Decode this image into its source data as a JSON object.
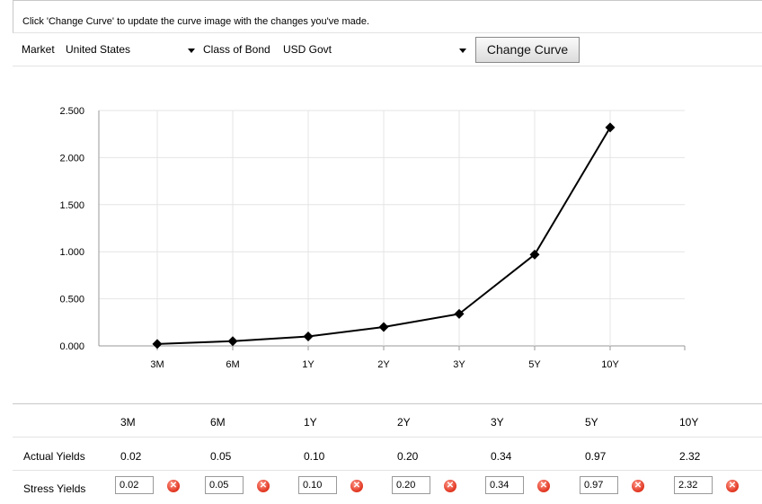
{
  "instruction": "Click 'Change Curve' to update the curve image with the changes you've made.",
  "controls": {
    "market_label": "Market",
    "market_value": "United States",
    "bond_label": "Class of Bond",
    "bond_value": "USD Govt",
    "change_button": "Change Curve"
  },
  "chart_data": {
    "type": "line",
    "categories": [
      "3M",
      "6M",
      "1Y",
      "2Y",
      "3Y",
      "5Y",
      "10Y"
    ],
    "values": [
      0.02,
      0.05,
      0.1,
      0.2,
      0.34,
      0.97,
      2.32
    ],
    "ylim": [
      0,
      2.5
    ],
    "yticks": [
      "0.000",
      "0.500",
      "1.000",
      "1.500",
      "2.000",
      "2.500"
    ],
    "grid": true,
    "marker": "diamond"
  },
  "table": {
    "headers": [
      "3M",
      "6M",
      "1Y",
      "2Y",
      "3Y",
      "5Y",
      "10Y"
    ],
    "actual_label": "Actual Yields",
    "actual": [
      "0.02",
      "0.05",
      "0.10",
      "0.20",
      "0.34",
      "0.97",
      "2.32"
    ],
    "stress_label": "Stress Yields",
    "stress": [
      "0.02",
      "0.05",
      "0.10",
      "0.20",
      "0.34",
      "0.97",
      "2.32"
    ],
    "remove_icon": "close-circle-icon",
    "remove_color": "#e0341f"
  }
}
